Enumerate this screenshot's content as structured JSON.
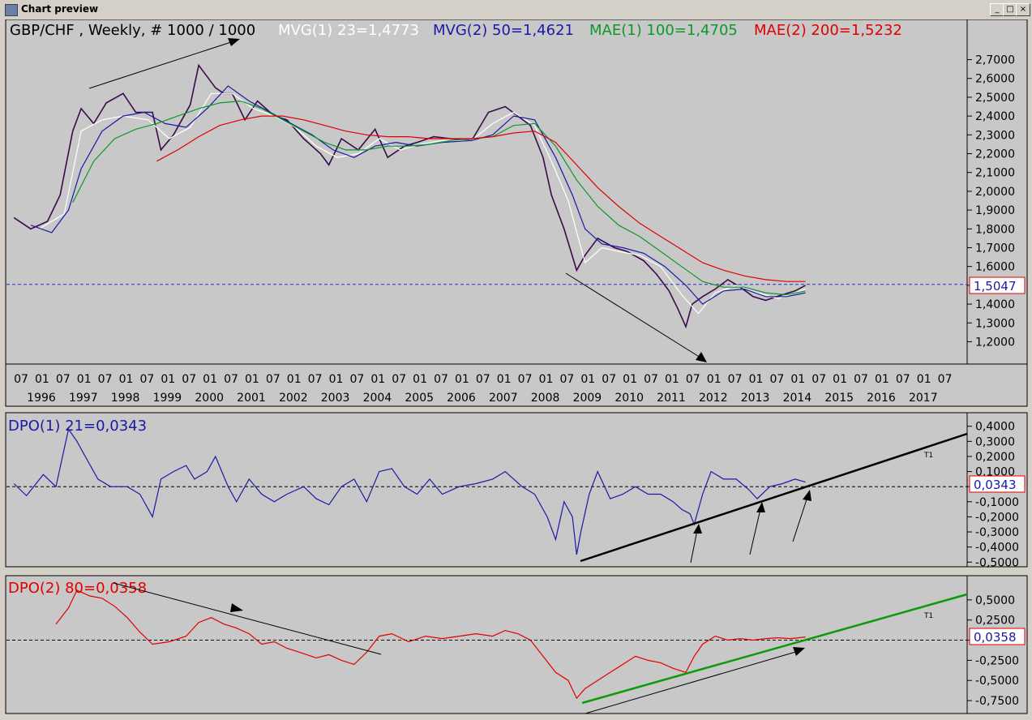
{
  "window": {
    "title": "Chart preview",
    "buttons": [
      "_",
      "□",
      "×"
    ]
  },
  "main_panel": {
    "instrument_label": "GBP/CHF , Weekly, # 1000 / 1000",
    "indicators": [
      {
        "label": "MVG(1) 23=1,4773",
        "color": "#ffffff"
      },
      {
        "label": "MVG(2) 50=1,4621",
        "color": "#1a1aa6"
      },
      {
        "label": "MAE(1) 100=1,4705",
        "color": "#0a9a2a"
      },
      {
        "label": "MAE(2) 200=1,5232",
        "color": "#e00000"
      }
    ],
    "last_price_label": "1,5047"
  },
  "dpo1_panel": {
    "label": "DPO(1) 21=0,0343",
    "value_box": "0,0343",
    "trend_tag": "T1"
  },
  "dpo2_panel": {
    "label": "DPO(2) 80=0,0358",
    "value_box": "0,0358",
    "trend_tag": "T1"
  },
  "chart_data": [
    {
      "type": "line",
      "title": "GBP/CHF , Weekly, # 1000 / 1000",
      "x_axis": {
        "month_ticks": [
          "07",
          "01",
          "07",
          "01",
          "07",
          "01",
          "07",
          "01",
          "07",
          "01",
          "07",
          "01",
          "07",
          "01",
          "07",
          "01",
          "07",
          "01",
          "07",
          "01",
          "07",
          "01",
          "07",
          "01",
          "07",
          "01",
          "07",
          "01",
          "07",
          "01",
          "07",
          "01",
          "07",
          "01",
          "07",
          "01",
          "07",
          "01",
          "07",
          "01",
          "07",
          "01",
          "07",
          "01",
          "07"
        ],
        "year_labels": [
          "1996",
          "1997",
          "1998",
          "1999",
          "2000",
          "2001",
          "2002",
          "2003",
          "2004",
          "2005",
          "2006",
          "2007",
          "2008",
          "2009",
          "2010",
          "2011",
          "2012",
          "2013",
          "2014",
          "2015",
          "2016",
          "2017"
        ]
      },
      "y_axis": {
        "ticks": [
          "2,7000",
          "2,6000",
          "2,5000",
          "2,4000",
          "2,3000",
          "2,2000",
          "2,1000",
          "2,0000",
          "1,9000",
          "1,8000",
          "1,7000",
          "1,6000",
          "1,5000",
          "1,4000",
          "1,3000",
          "1,2000"
        ],
        "ylim": [
          1.12,
          2.78
        ]
      },
      "reference_line": 1.5047,
      "series": [
        {
          "name": "GBP/CHF",
          "color": "#3a0a4a",
          "x": [
            1995.6,
            1996.0,
            1996.4,
            1996.7,
            1997.0,
            1997.2,
            1997.5,
            1997.8,
            1998.2,
            1998.5,
            1998.9,
            1999.1,
            1999.4,
            1999.8,
            2000.0,
            2000.4,
            2000.6,
            2000.8,
            2001.1,
            2001.4,
            2001.8,
            2002.1,
            2002.5,
            2002.9,
            2003.1,
            2003.4,
            2003.8,
            2004.2,
            2004.5,
            2004.9,
            2005.2,
            2005.6,
            2006.0,
            2006.5,
            2006.9,
            2007.3,
            2007.6,
            2007.9,
            2008.2,
            2008.4,
            2008.7,
            2009.0,
            2009.2,
            2009.5,
            2009.9,
            2010.2,
            2010.6,
            2010.9,
            2011.2,
            2011.4,
            2011.6,
            2011.75,
            2012.0,
            2012.3,
            2012.6,
            2012.9,
            2013.2,
            2013.5,
            2013.9,
            2014.2,
            2014.45
          ],
          "y": [
            1.86,
            1.8,
            1.84,
            1.98,
            2.32,
            2.44,
            2.36,
            2.47,
            2.52,
            2.42,
            2.42,
            2.22,
            2.3,
            2.46,
            2.67,
            2.55,
            2.52,
            2.52,
            2.38,
            2.48,
            2.4,
            2.38,
            2.28,
            2.2,
            2.14,
            2.28,
            2.22,
            2.33,
            2.18,
            2.24,
            2.26,
            2.29,
            2.28,
            2.27,
            2.42,
            2.45,
            2.4,
            2.35,
            2.18,
            1.98,
            1.8,
            1.58,
            1.66,
            1.75,
            1.7,
            1.68,
            1.63,
            1.56,
            1.47,
            1.38,
            1.28,
            1.4,
            1.44,
            1.48,
            1.53,
            1.49,
            1.44,
            1.42,
            1.45,
            1.47,
            1.5
          ]
        },
        {
          "name": "MVG(1) 23",
          "color": "#ffffff",
          "x": [
            1996.2,
            1996.8,
            1997.2,
            1997.7,
            1998.2,
            1998.8,
            1999.3,
            1999.8,
            2000.3,
            2000.8,
            2001.3,
            2001.8,
            2002.3,
            2002.8,
            2003.3,
            2003.8,
            2004.3,
            2004.8,
            2005.3,
            2005.8,
            2006.5,
            2007.0,
            2007.5,
            2008.0,
            2008.4,
            2008.8,
            2009.2,
            2009.6,
            2010.0,
            2010.5,
            2011.0,
            2011.5,
            2011.9,
            2012.3,
            2012.8,
            2013.3,
            2013.8,
            2014.2,
            2014.45
          ],
          "y": [
            1.8,
            1.88,
            2.32,
            2.38,
            2.4,
            2.38,
            2.28,
            2.34,
            2.52,
            2.52,
            2.44,
            2.4,
            2.34,
            2.24,
            2.18,
            2.2,
            2.28,
            2.22,
            2.25,
            2.27,
            2.27,
            2.36,
            2.42,
            2.35,
            2.16,
            1.95,
            1.62,
            1.7,
            1.68,
            1.66,
            1.6,
            1.45,
            1.35,
            1.46,
            1.5,
            1.46,
            1.43,
            1.46,
            1.48
          ]
        },
        {
          "name": "MVG(2) 50",
          "color": "#1a1aa6",
          "x": [
            1996.0,
            1996.5,
            1996.9,
            1997.2,
            1997.7,
            1998.2,
            1998.7,
            1999.2,
            1999.7,
            2000.2,
            2000.7,
            2001.2,
            2001.7,
            2002.2,
            2002.7,
            2003.2,
            2003.7,
            2004.2,
            2004.7,
            2005.2,
            2005.8,
            2006.5,
            2007.0,
            2007.5,
            2008.0,
            2008.5,
            2008.9,
            2009.2,
            2009.6,
            2010.1,
            2010.6,
            2011.1,
            2011.6,
            2012.0,
            2012.5,
            2013.0,
            2013.5,
            2014.0,
            2014.45
          ],
          "y": [
            1.82,
            1.78,
            1.9,
            2.12,
            2.32,
            2.4,
            2.42,
            2.36,
            2.34,
            2.44,
            2.56,
            2.48,
            2.42,
            2.36,
            2.3,
            2.22,
            2.18,
            2.24,
            2.26,
            2.24,
            2.26,
            2.27,
            2.3,
            2.4,
            2.38,
            2.18,
            1.98,
            1.8,
            1.72,
            1.7,
            1.67,
            1.6,
            1.5,
            1.4,
            1.47,
            1.48,
            1.44,
            1.44,
            1.46
          ]
        },
        {
          "name": "MAE(1) 100",
          "color": "#0a9a2a",
          "x": [
            1997.0,
            1997.5,
            1998.0,
            1998.5,
            1999.0,
            1999.5,
            2000.0,
            2000.5,
            2001.0,
            2001.5,
            2002.0,
            2002.5,
            2003.0,
            2003.5,
            2004.0,
            2004.5,
            2005.0,
            2005.5,
            2006.0,
            2006.5,
            2007.0,
            2007.5,
            2008.0,
            2008.5,
            2009.0,
            2009.5,
            2010.0,
            2010.5,
            2011.0,
            2011.5,
            2012.0,
            2012.5,
            2013.0,
            2013.5,
            2014.0,
            2014.45
          ],
          "y": [
            1.94,
            2.16,
            2.28,
            2.33,
            2.36,
            2.4,
            2.44,
            2.47,
            2.48,
            2.44,
            2.38,
            2.32,
            2.26,
            2.22,
            2.22,
            2.24,
            2.24,
            2.25,
            2.27,
            2.28,
            2.29,
            2.35,
            2.36,
            2.24,
            2.06,
            1.92,
            1.82,
            1.76,
            1.68,
            1.6,
            1.52,
            1.49,
            1.49,
            1.46,
            1.45,
            1.47
          ]
        },
        {
          "name": "MAE(2) 200",
          "color": "#e00000",
          "x": [
            1999.0,
            1999.5,
            2000.0,
            2000.5,
            2001.0,
            2001.5,
            2002.0,
            2002.5,
            2003.0,
            2003.5,
            2004.0,
            2004.5,
            2005.0,
            2005.5,
            2006.0,
            2006.5,
            2007.0,
            2007.5,
            2008.0,
            2008.5,
            2009.0,
            2009.5,
            2010.0,
            2010.5,
            2011.0,
            2011.5,
            2012.0,
            2012.5,
            2013.0,
            2013.5,
            2014.0,
            2014.45
          ],
          "y": [
            2.16,
            2.22,
            2.29,
            2.35,
            2.38,
            2.4,
            2.4,
            2.38,
            2.35,
            2.32,
            2.3,
            2.29,
            2.29,
            2.28,
            2.28,
            2.28,
            2.29,
            2.31,
            2.32,
            2.26,
            2.14,
            2.02,
            1.92,
            1.83,
            1.76,
            1.69,
            1.62,
            1.58,
            1.55,
            1.53,
            1.52,
            1.52
          ]
        }
      ]
    },
    {
      "type": "line",
      "title": "DPO(1) 21=0,0343",
      "y_axis": {
        "ticks": [
          "0,4000",
          "0,3000",
          "0,2000",
          "0,1000",
          "0",
          "-0,1000",
          "-0,2000",
          "-0,3000",
          "-0,4000",
          "-0,5000"
        ],
        "ylim": [
          -0.52,
          0.42
        ]
      },
      "reference_line": 0,
      "series": [
        {
          "name": "DPO(1) 21",
          "color": "#1a1aa6",
          "x": [
            1995.6,
            1995.9,
            1996.3,
            1996.6,
            1996.9,
            1997.1,
            1997.3,
            1997.6,
            1997.9,
            1998.3,
            1998.6,
            1998.9,
            1999.1,
            1999.4,
            1999.7,
            1999.9,
            2000.2,
            2000.4,
            2000.7,
            2000.9,
            2001.2,
            2001.5,
            2001.8,
            2002.1,
            2002.5,
            2002.8,
            2003.1,
            2003.4,
            2003.7,
            2004.0,
            2004.3,
            2004.6,
            2004.9,
            2005.2,
            2005.5,
            2005.8,
            2006.2,
            2006.6,
            2007.0,
            2007.3,
            2007.7,
            2008.0,
            2008.3,
            2008.5,
            2008.7,
            2008.9,
            2009.0,
            2009.1,
            2009.3,
            2009.5,
            2009.8,
            2010.1,
            2010.4,
            2010.7,
            2011.0,
            2011.3,
            2011.5,
            2011.7,
            2011.8,
            2012.0,
            2012.2,
            2012.5,
            2012.8,
            2013.1,
            2013.3,
            2013.6,
            2013.9,
            2014.2,
            2014.45
          ],
          "y": [
            0.02,
            -0.06,
            0.08,
            0.0,
            0.38,
            0.3,
            0.2,
            0.05,
            0.0,
            0.0,
            -0.05,
            -0.2,
            0.05,
            0.1,
            0.14,
            0.05,
            0.1,
            0.2,
            0.0,
            -0.1,
            0.05,
            -0.05,
            -0.1,
            -0.05,
            0.0,
            -0.08,
            -0.12,
            0.0,
            0.05,
            -0.1,
            0.1,
            0.12,
            0.0,
            -0.05,
            0.05,
            -0.05,
            0.0,
            0.02,
            0.05,
            0.1,
            0.0,
            -0.05,
            -0.2,
            -0.35,
            -0.1,
            -0.2,
            -0.45,
            -0.3,
            -0.05,
            0.1,
            -0.08,
            -0.05,
            0.0,
            -0.05,
            -0.05,
            -0.1,
            -0.15,
            -0.18,
            -0.25,
            -0.05,
            0.1,
            0.05,
            0.05,
            -0.02,
            -0.08,
            0.0,
            0.02,
            0.05,
            0.03
          ]
        }
      ]
    },
    {
      "type": "line",
      "title": "DPO(2) 80=0,0358",
      "y_axis": {
        "ticks": [
          "0,5000",
          "0,2500",
          "0",
          "-0,2500",
          "-0,5000",
          "-0,7500"
        ],
        "ylim": [
          -0.85,
          0.72
        ]
      },
      "reference_line": 0,
      "series": [
        {
          "name": "DPO(2) 80",
          "color": "#e00000",
          "x": [
            1996.6,
            1996.9,
            1997.1,
            1997.4,
            1997.7,
            1998.0,
            1998.3,
            1998.6,
            1998.9,
            1999.3,
            1999.7,
            2000.0,
            2000.3,
            2000.6,
            2000.9,
            2001.2,
            2001.5,
            2001.8,
            2002.1,
            2002.4,
            2002.8,
            2003.1,
            2003.4,
            2003.7,
            2004.0,
            2004.3,
            2004.6,
            2005.0,
            2005.4,
            2005.8,
            2006.2,
            2006.6,
            2007.0,
            2007.3,
            2007.6,
            2007.9,
            2008.2,
            2008.5,
            2008.8,
            2009.0,
            2009.2,
            2009.5,
            2009.8,
            2010.1,
            2010.4,
            2010.7,
            2011.0,
            2011.3,
            2011.6,
            2011.8,
            2012.0,
            2012.3,
            2012.6,
            2012.9,
            2013.2,
            2013.5,
            2013.8,
            2014.1,
            2014.45
          ],
          "y": [
            0.2,
            0.4,
            0.62,
            0.55,
            0.52,
            0.42,
            0.28,
            0.1,
            -0.05,
            -0.02,
            0.05,
            0.22,
            0.28,
            0.2,
            0.15,
            0.08,
            -0.05,
            -0.02,
            -0.1,
            -0.15,
            -0.22,
            -0.18,
            -0.25,
            -0.3,
            -0.15,
            0.05,
            0.08,
            -0.02,
            0.05,
            0.02,
            0.05,
            0.08,
            0.05,
            0.12,
            0.08,
            0.0,
            -0.2,
            -0.4,
            -0.5,
            -0.72,
            -0.6,
            -0.5,
            -0.4,
            -0.3,
            -0.2,
            -0.25,
            -0.28,
            -0.35,
            -0.4,
            -0.2,
            -0.05,
            0.05,
            0.0,
            0.02,
            0.0,
            0.02,
            0.03,
            0.02,
            0.04
          ]
        }
      ]
    }
  ]
}
